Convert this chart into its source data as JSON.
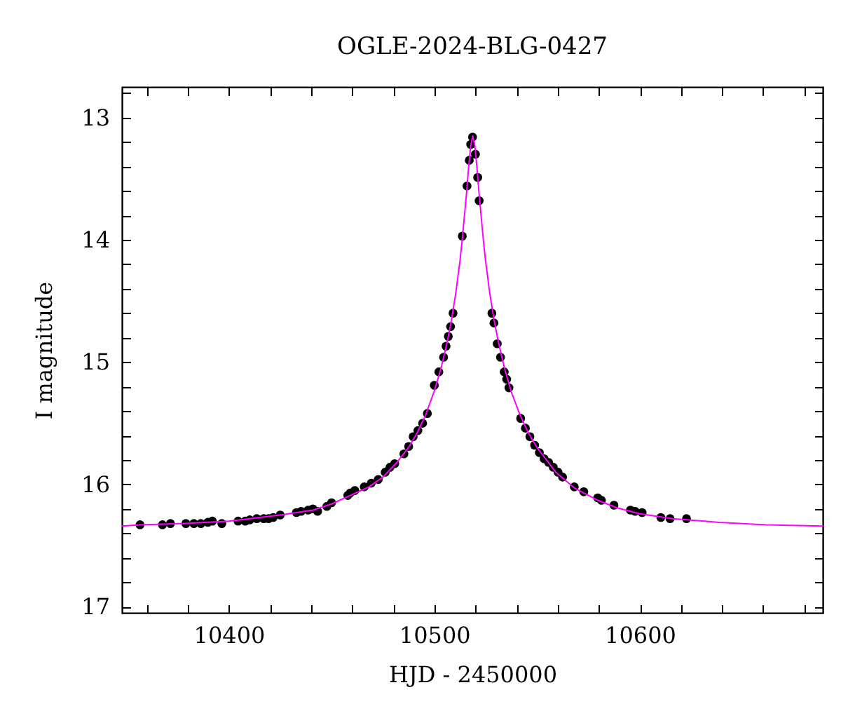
{
  "chart_data": {
    "type": "scatter",
    "title": "OGLE-2024-BLG-0427",
    "xlabel": "HJD - 2450000",
    "ylabel": "I magnitude",
    "xlim": [
      10348,
      10689
    ],
    "ylim": [
      17.05,
      12.75
    ],
    "xticks": [
      {
        "value": 10360,
        "label": null
      },
      {
        "value": 10380,
        "label": null
      },
      10400,
      {
        "value": 10420,
        "label": null
      },
      {
        "value": 10440,
        "label": null
      },
      {
        "value": 10460,
        "label": null
      },
      {
        "value": 10480,
        "label": null
      },
      10500,
      {
        "value": 10520,
        "label": null
      },
      {
        "value": 10540,
        "label": null
      },
      {
        "value": 10560,
        "label": null
      },
      {
        "value": 10580,
        "label": null
      },
      10600,
      {
        "value": 10620,
        "label": null
      },
      {
        "value": 10640,
        "label": null
      },
      {
        "value": 10660,
        "label": null
      },
      {
        "value": 10680,
        "label": null
      }
    ],
    "yticks": [
      {
        "value": 12.8,
        "label": null
      },
      13,
      {
        "value": 13.2,
        "label": null
      },
      {
        "value": 13.4,
        "label": null
      },
      {
        "value": 13.6,
        "label": null
      },
      {
        "value": 13.8,
        "label": null
      },
      14,
      {
        "value": 14.2,
        "label": null
      },
      {
        "value": 14.4,
        "label": null
      },
      {
        "value": 14.6,
        "label": null
      },
      {
        "value": 14.8,
        "label": null
      },
      15,
      {
        "value": 15.2,
        "label": null
      },
      {
        "value": 15.4,
        "label": null
      },
      {
        "value": 15.6,
        "label": null
      },
      {
        "value": 15.8,
        "label": null
      },
      16,
      {
        "value": 16.2,
        "label": null
      },
      {
        "value": 16.4,
        "label": null
      },
      {
        "value": 16.6,
        "label": null
      },
      {
        "value": 16.8,
        "label": null
      },
      17
    ],
    "series": [
      {
        "color": "#000000",
        "marker": "circle",
        "x": [
          10356.8,
          10367.7,
          10371.6,
          10379.1,
          10383.0,
          10386.4,
          10389.8,
          10392.0,
          10396.6,
          10404.5,
          10408.0,
          10410.2,
          10413.6,
          10417.0,
          10419.3,
          10421.6,
          10425.0,
          10432.9,
          10435.2,
          10438.6,
          10440.9,
          10443.2,
          10447.7,
          10450.0,
          10457.9,
          10459.1,
          10461.3,
          10465.9,
          10469.3,
          10472.7,
          10476.1,
          10478.4,
          10480.7,
          10485.2,
          10487.5,
          10489.7,
          10492.0,
          10494.3,
          10496.6,
          10500.0,
          10502.2,
          10504.5,
          10505.7,
          10506.8,
          10507.9,
          10509.1,
          10513.6,
          10515.9,
          10517.0,
          10517.7,
          10518.6,
          10520.0,
          10521.1,
          10521.8,
          10528.0,
          10529.0,
          10530.6,
          10532.2,
          10534.0,
          10535.2,
          10536.3,
          10542.0,
          10544.3,
          10546.5,
          10548.8,
          10551.1,
          10553.4,
          10555.6,
          10557.9,
          10560.2,
          10562.4,
          10568.1,
          10572.7,
          10579.5,
          10581.3,
          10587.4,
          10595.4,
          10597.7,
          10601.1,
          10610.2,
          10614.7,
          10622.7
        ],
        "values": [
          16.33,
          16.33,
          16.32,
          16.32,
          16.32,
          16.32,
          16.31,
          16.3,
          16.32,
          16.3,
          16.3,
          16.29,
          16.28,
          16.28,
          16.28,
          16.27,
          16.25,
          16.23,
          16.22,
          16.21,
          16.2,
          16.22,
          16.18,
          16.15,
          16.09,
          16.07,
          16.05,
          16.02,
          15.99,
          15.96,
          15.9,
          15.86,
          15.83,
          15.75,
          15.69,
          15.61,
          15.56,
          15.5,
          15.42,
          15.19,
          15.08,
          14.96,
          14.87,
          14.79,
          14.71,
          14.6,
          13.97,
          13.56,
          13.35,
          13.22,
          13.16,
          13.3,
          13.49,
          13.68,
          14.6,
          14.68,
          14.85,
          14.96,
          15.08,
          15.14,
          15.21,
          15.46,
          15.54,
          15.61,
          15.68,
          15.74,
          15.79,
          15.82,
          15.86,
          15.9,
          15.94,
          16.02,
          16.06,
          16.11,
          16.13,
          16.17,
          16.21,
          16.22,
          16.23,
          16.27,
          16.28,
          16.28
        ]
      },
      {
        "type": "line",
        "color": "#ff00ff",
        "x": [
          10348.0,
          10356.9,
          10377.3,
          10400.0,
          10425.0,
          10440.9,
          10450.0,
          10459.1,
          10468.2,
          10475.0,
          10481.8,
          10487.4,
          10491.6,
          10495.8,
          10499.9,
          10503.1,
          10506.2,
          10508.3,
          10510.4,
          10512.5,
          10513.5,
          10514.5,
          10515.6,
          10516.6,
          10517.7,
          10518.7,
          10519.7,
          10520.8,
          10521.8,
          10522.9,
          10523.9,
          10524.9,
          10527.0,
          10529.1,
          10531.2,
          10534.3,
          10537.4,
          10541.6,
          10545.8,
          10550.0,
          10552.3,
          10559.1,
          10568.2,
          10579.6,
          10588.6,
          10600.0,
          10615.9,
          10638.6,
          10661.4,
          10689.0
        ],
        "values": [
          16.34,
          16.33,
          16.32,
          16.3,
          16.25,
          16.21,
          16.16,
          16.09,
          16.02,
          15.94,
          15.82,
          15.7,
          15.58,
          15.43,
          15.24,
          15.06,
          14.84,
          14.66,
          14.44,
          14.17,
          14.01,
          13.83,
          13.63,
          13.42,
          13.23,
          13.15,
          13.23,
          13.42,
          13.63,
          13.83,
          14.01,
          14.17,
          14.44,
          14.66,
          14.84,
          15.06,
          15.24,
          15.43,
          15.58,
          15.7,
          15.75,
          15.9,
          16.03,
          16.13,
          16.19,
          16.24,
          16.28,
          16.31,
          16.33,
          16.34
        ]
      }
    ]
  }
}
